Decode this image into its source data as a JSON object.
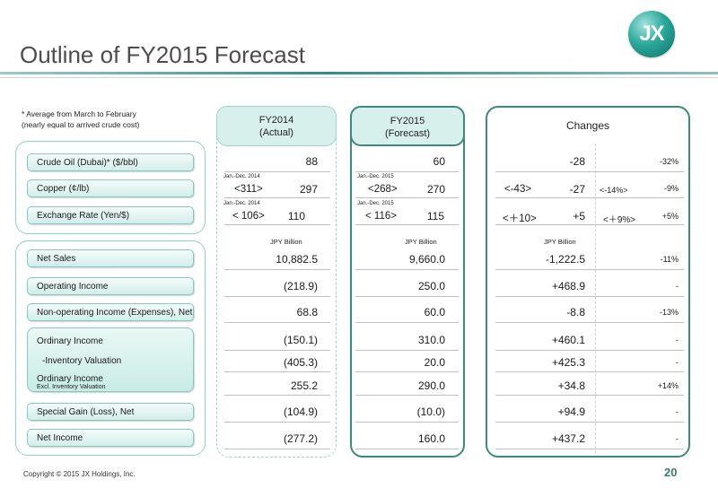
{
  "title": "Outline of FY2015 Forecast",
  "logo_text": "JX",
  "note_lines": [
    "* Average from March to February",
    "(nearly equal to arrived crude cost)"
  ],
  "headers": {
    "fy2014": [
      "FY2014",
      "(Actual)"
    ],
    "fy2015": [
      "FY2015",
      "(Forecast)"
    ],
    "changes": "Changes"
  },
  "period_labels": {
    "fy2014": "Jan.-Dec. 2014",
    "fy2015": "Jan.-Dec. 2015"
  },
  "unit": "JPY Billion",
  "rows_top": [
    {
      "label": "Crude Oil (Dubai)* ($/bbl)",
      "fy2014": "88",
      "fy2015": "60",
      "change": "-28",
      "rate": "-32%"
    },
    {
      "label": "Copper (¢/lb)",
      "fy2014_bracket": "<311>",
      "fy2014": "297",
      "fy2015_bracket": "<268>",
      "fy2015": "270",
      "change_bracket": "<-43>",
      "change": "-27",
      "rate_bracket": "<-14%>",
      "rate": "-9%"
    },
    {
      "label": "Exchange Rate (Yen/$)",
      "fy2014_bracket": "< 106>",
      "fy2014": "110",
      "fy2015_bracket": "< 116>",
      "fy2015": "115",
      "change_bracket": "<＋10>",
      "change": "+5",
      "rate_bracket": "<＋9%>",
      "rate": "+5%"
    }
  ],
  "rows_main": [
    {
      "label": "Net Sales",
      "fy2014": "10,882.5",
      "fy2015": "9,660.0",
      "change": "-1,222.5",
      "rate": "-11%"
    },
    {
      "label": "Operating Income",
      "fy2014": "(218.9)",
      "fy2015": "250.0",
      "change": "+468.9",
      "rate": "-"
    },
    {
      "label": "Non-operating Income (Expenses), Net",
      "fy2014": "68.8",
      "fy2015": "60.0",
      "change": "-8.8",
      "rate": "-13%"
    },
    {
      "label": "Ordinary Income",
      "fy2014": "(150.1)",
      "fy2015": "310.0",
      "change": "+460.1",
      "rate": "-"
    },
    {
      "label": "-Inventory Valuation",
      "fy2014": "(405.3)",
      "fy2015": "20.0",
      "change": "+425.3",
      "rate": "-"
    },
    {
      "label": "Ordinary Income",
      "sublabel": "Excl. Inventory Valuation",
      "fy2014": "255.2",
      "fy2015": "290.0",
      "change": "+34.8",
      "rate": "+14%"
    },
    {
      "label": "Special Gain (Loss), Net",
      "fy2014": "(104.9)",
      "fy2015": "(10.0)",
      "change": "+94.9",
      "rate": "-"
    },
    {
      "label": "Net Income",
      "fy2014": "(277.2)",
      "fy2015": "160.0",
      "change": "+437.2",
      "rate": "-"
    }
  ],
  "footer": "Copyright © 2015 JX Holdings, Inc.",
  "page_number": "20"
}
